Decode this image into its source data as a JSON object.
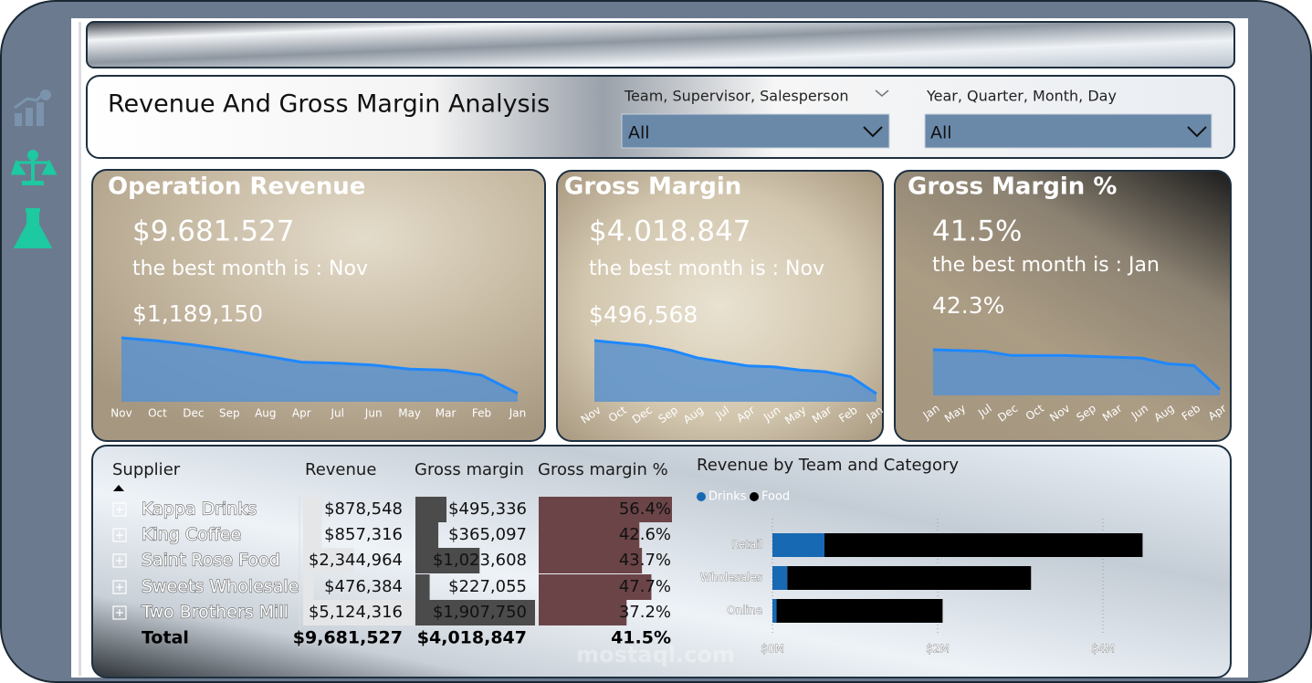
{
  "header": {
    "title": "Revenue And Gross Margin Analysis"
  },
  "filters": [
    {
      "label": "Team, Supervisor, Salesperson",
      "value": "All"
    },
    {
      "label": "Year, Quarter, Month, Day",
      "value": "All"
    }
  ],
  "cards": [
    {
      "title": "Operation Revenue",
      "value": "$9.681.527",
      "best_month": "the best month is : Nov",
      "best_value": "$1,189,150",
      "chart_data": {
        "type": "area",
        "color": "#1e88ff",
        "categories": [
          "Nov",
          "Oct",
          "Dec",
          "Sep",
          "Aug",
          "Apr",
          "Jul",
          "Jun",
          "May",
          "Mar",
          "Feb",
          "Jan"
        ],
        "values": [
          1189150,
          1138000,
          1070000,
          985000,
          883000,
          781000,
          764000,
          730000,
          663000,
          646000,
          561000,
          255000
        ]
      }
    },
    {
      "title": "Gross Margin",
      "value": "$4.018.847",
      "best_month": "the best month is : Nov",
      "best_value": "$496,568",
      "chart_data": {
        "type": "area",
        "color": "#1e88ff",
        "categories": [
          "Nov",
          "Oct",
          "Dec",
          "Sep",
          "Aug",
          "Jul",
          "Apr",
          "Jun",
          "May",
          "Mar",
          "Feb",
          "Jan"
        ],
        "values": [
          496568,
          474000,
          452000,
          408000,
          341000,
          304000,
          267000,
          259000,
          230000,
          215000,
          170000,
          15000
        ]
      }
    },
    {
      "title": "Gross Margin %",
      "value": "41.5%",
      "best_month": "the best month is : Jan",
      "best_value": "42.3%",
      "chart_data": {
        "type": "area",
        "color": "#1e88ff",
        "categories": [
          "Jan",
          "May",
          "Jul",
          "Dec",
          "Oct",
          "Nov",
          "Sep",
          "Mar",
          "Jun",
          "Aug",
          "Feb",
          "Apr"
        ],
        "values": [
          42.3,
          42.2,
          42.1,
          41.6,
          41.6,
          41.6,
          41.5,
          41.4,
          41.3,
          40.6,
          40.4,
          37.5
        ]
      }
    }
  ],
  "table": {
    "columns": [
      "Supplier",
      "Revenue",
      "Gross margin",
      "Gross margin %"
    ],
    "rows": [
      {
        "supplier": "Kappa Drinks",
        "revenue": {
          "value": 878548,
          "label": "$878,548"
        },
        "gross_margin": {
          "value": 495336,
          "label": "$495,336"
        },
        "gross_margin_pct": {
          "value": 56.4,
          "label": "56.4%"
        }
      },
      {
        "supplier": "King Coffee",
        "revenue": {
          "value": 857316,
          "label": "$857,316"
        },
        "gross_margin": {
          "value": 365097,
          "label": "$365,097"
        },
        "gross_margin_pct": {
          "value": 42.6,
          "label": "42.6%"
        }
      },
      {
        "supplier": "Saint Rose Food",
        "revenue": {
          "value": 2344964,
          "label": "$2,344,964"
        },
        "gross_margin": {
          "value": 1023608,
          "label": "$1,023,608"
        },
        "gross_margin_pct": {
          "value": 43.7,
          "label": "43.7%"
        }
      },
      {
        "supplier": "Sweets Wholesale",
        "revenue": {
          "value": 476384,
          "label": "$476,384"
        },
        "gross_margin": {
          "value": 227055,
          "label": "$227,055"
        },
        "gross_margin_pct": {
          "value": 47.7,
          "label": "47.7%"
        }
      },
      {
        "supplier": "Two Brothers Mill",
        "revenue": {
          "value": 5124316,
          "label": "$5,124,316"
        },
        "gross_margin": {
          "value": 1907750,
          "label": "$1,907,750"
        },
        "gross_margin_pct": {
          "value": 37.2,
          "label": "37.2%"
        }
      }
    ],
    "total": {
      "supplier": "Total",
      "revenue": {
        "value": 9681527,
        "label": "$9,681,527"
      },
      "gross_margin": {
        "value": 4018847,
        "label": "$4,018,847"
      },
      "gross_margin_pct": {
        "value": 41.5,
        "label": "41.5%"
      }
    }
  },
  "chart_data": {
    "type": "bar",
    "orientation": "horizontal",
    "stacked": true,
    "grid": true,
    "title": "Revenue by Team and Category",
    "categories": [
      "Retail",
      "Wholesales",
      "Online"
    ],
    "series": [
      {
        "name": "Drinks",
        "color": "#1769b3",
        "values": [
          630000,
          180000,
          50000
        ]
      },
      {
        "name": "Food",
        "color": "#000000",
        "values": [
          3850000,
          2950000,
          2010000
        ]
      }
    ],
    "xlim": [
      0,
      4800000
    ],
    "xticks": [
      {
        "value": 0,
        "label": "$0M"
      },
      {
        "value": 2000000,
        "label": "$2M"
      },
      {
        "value": 4000000,
        "label": "$4M"
      }
    ]
  },
  "watermark": "mostaql.com"
}
